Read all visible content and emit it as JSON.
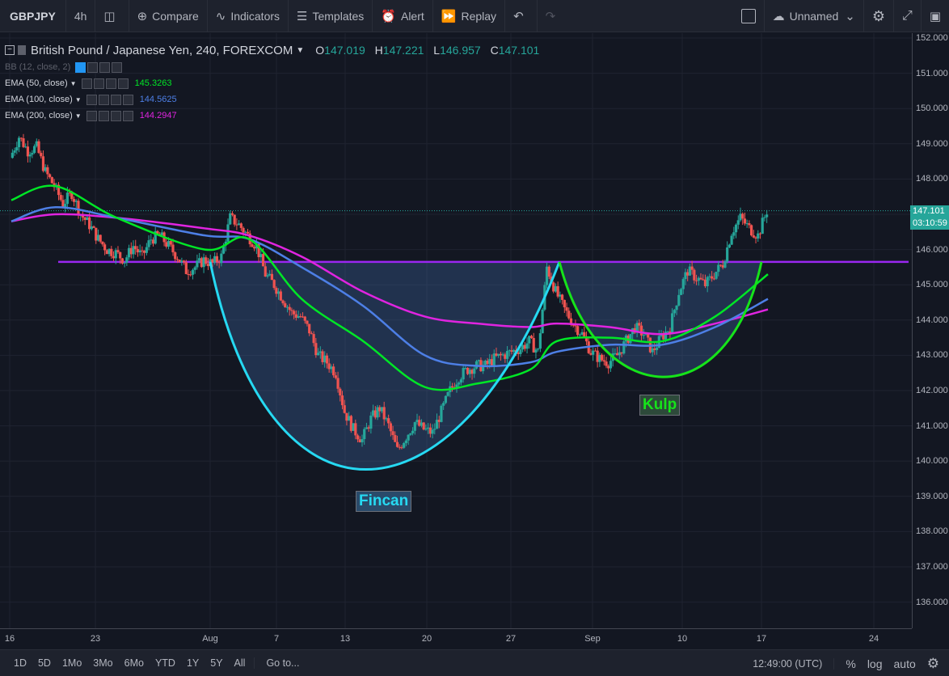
{
  "toolbar": {
    "symbol": "GBPJPY",
    "interval": "4h",
    "compare": "Compare",
    "indicators": "Indicators",
    "templates": "Templates",
    "alert": "Alert",
    "replay": "Replay",
    "layout_name": "Unnamed"
  },
  "legend": {
    "title": "British Pound / Japanese Yen, 240, FOREXCOM",
    "o_label": "O",
    "o": "147.019",
    "h_label": "H",
    "h": "147.221",
    "l_label": "L",
    "l": "146.957",
    "c_label": "C",
    "c": "147.101",
    "bb": "BB (12, close, 2)",
    "ema50": "EMA (50, close)",
    "ema50_val": "145.3263",
    "ema100": "EMA (100, close)",
    "ema100_val": "144.5625",
    "ema200": "EMA (200, close)",
    "ema200_val": "144.2947"
  },
  "annotations": {
    "cup": "Fincan",
    "handle": "Kulp"
  },
  "price_tags": {
    "last": "147.101",
    "countdown": "03:10:59"
  },
  "bottombar": {
    "ranges": [
      "1D",
      "5D",
      "1Mo",
      "3Mo",
      "6Mo",
      "YTD",
      "1Y",
      "5Y",
      "All"
    ],
    "goto": "Go to...",
    "time": "12:49:00 (UTC)",
    "pct": "%",
    "log": "log",
    "auto": "auto"
  },
  "colors": {
    "bg": "#131722",
    "up": "#26a69a",
    "down": "#ef5350",
    "ema50": "#00e626",
    "ema100": "#4d7fe6",
    "ema200": "#e024e0",
    "cup": "#26d9f2",
    "handle": "#16e31a",
    "resistance": "#9a27f0"
  },
  "chart_data": {
    "type": "candlestick",
    "y_range": [
      135.5,
      152.2
    ],
    "y_ticks": [
      "152.000",
      "151.000",
      "150.000",
      "149.000",
      "148.000",
      "147.000",
      "146.000",
      "145.000",
      "144.000",
      "143.000",
      "142.000",
      "141.000",
      "140.000",
      "139.000",
      "138.000",
      "137.000",
      "136.000"
    ],
    "x_ticks": [
      "16",
      "23",
      "Aug",
      "7",
      "13",
      "20",
      "27",
      "Sep",
      "10",
      "17",
      "24"
    ],
    "resistance": 145.65,
    "close_path": [
      [
        0,
        148.6
      ],
      [
        1,
        149.2
      ],
      [
        2,
        148.8
      ],
      [
        3,
        148.9
      ],
      [
        4,
        148.2
      ],
      [
        5,
        147.8
      ],
      [
        6,
        147.3
      ],
      [
        7,
        147.6
      ],
      [
        8,
        147.0
      ],
      [
        9,
        146.7
      ],
      [
        10,
        146.3
      ],
      [
        11,
        146.0
      ],
      [
        12,
        145.9
      ],
      [
        13,
        145.7
      ],
      [
        14,
        146.1
      ],
      [
        15,
        145.8
      ],
      [
        16,
        146.3
      ],
      [
        17,
        146.4
      ],
      [
        18,
        146.1
      ],
      [
        19,
        145.8
      ],
      [
        20,
        145.4
      ],
      [
        21,
        145.5
      ],
      [
        22,
        145.7
      ],
      [
        23,
        145.6
      ],
      [
        24,
        145.8
      ],
      [
        25,
        146.9
      ],
      [
        26,
        146.7
      ],
      [
        27,
        146.4
      ],
      [
        28,
        146.1
      ],
      [
        29,
        145.3
      ],
      [
        30,
        145.0
      ],
      [
        31,
        144.6
      ],
      [
        32,
        144.2
      ],
      [
        33,
        144.1
      ],
      [
        34,
        143.7
      ],
      [
        35,
        143.0
      ],
      [
        36,
        142.8
      ],
      [
        37,
        142.5
      ],
      [
        38,
        141.4
      ],
      [
        39,
        140.9
      ],
      [
        40,
        140.6
      ],
      [
        41,
        141.2
      ],
      [
        42,
        141.5
      ],
      [
        43,
        141.0
      ],
      [
        44,
        140.3
      ],
      [
        45,
        140.7
      ],
      [
        46,
        141.1
      ],
      [
        47,
        140.9
      ],
      [
        48,
        140.8
      ],
      [
        49,
        141.4
      ],
      [
        50,
        142.0
      ],
      [
        51,
        142.4
      ],
      [
        52,
        142.6
      ],
      [
        53,
        142.7
      ],
      [
        54,
        142.7
      ],
      [
        55,
        142.9
      ],
      [
        56,
        143.0
      ],
      [
        57,
        143.1
      ],
      [
        58,
        143.2
      ],
      [
        59,
        143.4
      ],
      [
        60,
        143.1
      ],
      [
        61,
        145.5
      ],
      [
        62,
        144.8
      ],
      [
        63,
        144.3
      ],
      [
        64,
        143.9
      ],
      [
        65,
        143.6
      ],
      [
        66,
        143.1
      ],
      [
        67,
        142.9
      ],
      [
        68,
        142.8
      ],
      [
        69,
        143.0
      ],
      [
        70,
        143.4
      ],
      [
        71,
        143.8
      ],
      [
        72,
        143.6
      ],
      [
        73,
        143.1
      ],
      [
        74,
        143.5
      ],
      [
        75,
        143.8
      ],
      [
        76,
        144.8
      ],
      [
        77,
        145.4
      ],
      [
        78,
        145.2
      ],
      [
        79,
        145.0
      ],
      [
        80,
        145.3
      ],
      [
        81,
        145.6
      ],
      [
        82,
        146.5
      ],
      [
        83,
        146.9
      ],
      [
        84,
        146.6
      ],
      [
        85,
        146.4
      ],
      [
        86,
        147.1
      ]
    ],
    "ema50": [
      [
        0,
        147.4
      ],
      [
        5,
        147.8
      ],
      [
        12,
        146.9
      ],
      [
        22,
        146.0
      ],
      [
        27,
        146.3
      ],
      [
        33,
        144.6
      ],
      [
        40,
        143.4
      ],
      [
        47,
        142.1
      ],
      [
        53,
        142.2
      ],
      [
        59,
        142.6
      ],
      [
        62,
        143.4
      ],
      [
        68,
        143.5
      ],
      [
        74,
        143.4
      ],
      [
        80,
        144.1
      ],
      [
        86,
        145.3
      ]
    ],
    "ema100": [
      [
        0,
        146.8
      ],
      [
        5,
        147.2
      ],
      [
        12,
        146.9
      ],
      [
        22,
        146.4
      ],
      [
        27,
        146.3
      ],
      [
        33,
        145.5
      ],
      [
        40,
        144.4
      ],
      [
        47,
        143.0
      ],
      [
        53,
        142.7
      ],
      [
        59,
        142.8
      ],
      [
        62,
        143.1
      ],
      [
        68,
        143.3
      ],
      [
        74,
        143.3
      ],
      [
        80,
        143.8
      ],
      [
        86,
        144.6
      ]
    ],
    "ema200": [
      [
        0,
        146.8
      ],
      [
        5,
        147.0
      ],
      [
        12,
        146.9
      ],
      [
        22,
        146.6
      ],
      [
        27,
        146.4
      ],
      [
        33,
        145.8
      ],
      [
        40,
        144.8
      ],
      [
        47,
        144.1
      ],
      [
        53,
        143.9
      ],
      [
        59,
        143.8
      ],
      [
        62,
        143.9
      ],
      [
        68,
        143.8
      ],
      [
        74,
        143.6
      ],
      [
        80,
        143.9
      ],
      [
        86,
        144.3
      ]
    ]
  }
}
